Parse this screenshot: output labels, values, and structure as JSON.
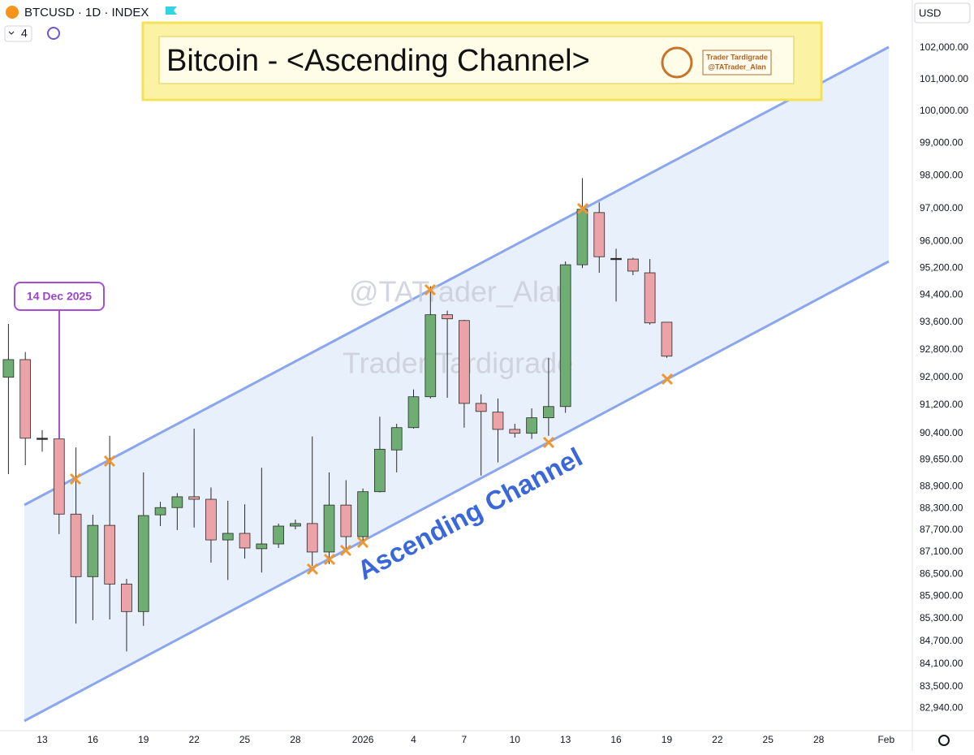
{
  "toolbar": {
    "symbol": "BTCUSD · 1D · INDEX",
    "count": 4,
    "currency": "USD"
  },
  "banner": {
    "title": "Bitcoin - <Ascending Channel>",
    "brand": "Trader Tardigrade",
    "handle": "@TATrader_Alan"
  },
  "watermarks": [
    "@TATrader_Alan",
    "Trader Tardigrade"
  ],
  "chart_data": {
    "type": "candlestick",
    "categories": [
      null,
      null,
      "13",
      null,
      null,
      "16",
      null,
      null,
      "19",
      null,
      null,
      "22",
      null,
      null,
      "25",
      null,
      null,
      "28",
      null,
      null,
      null,
      "2026",
      null,
      null,
      "4",
      null,
      null,
      "7",
      null,
      null,
      "10",
      null,
      null,
      "13",
      null,
      null,
      "16",
      null,
      null,
      "19",
      null,
      null,
      "22",
      null,
      null,
      "25",
      null,
      null,
      "28",
      null,
      null,
      null,
      "Feb",
      null
    ],
    "open": [
      92000,
      92510,
      90260,
      90240,
      88140,
      86430,
      87830,
      86230,
      85490,
      88120,
      88320,
      88620,
      88550,
      87430,
      87610,
      87190,
      87320,
      87810,
      87880,
      87100,
      88390,
      87520,
      88760,
      89930,
      90560,
      91440,
      93820,
      93650,
      91250,
      91000,
      90510,
      90400,
      90840,
      91160,
      95300,
      96870,
      95490,
      95470,
      95060,
      93600,
      null,
      null,
      null,
      null,
      null,
      null,
      null,
      null,
      null,
      null,
      null,
      null,
      null,
      null
    ],
    "high": [
      93550,
      92730,
      90490,
      90240,
      90000,
      88120,
      90330,
      86370,
      89300,
      88480,
      88720,
      90530,
      88880,
      88510,
      88410,
      89430,
      87880,
      87990,
      90310,
      89300,
      89080,
      88850,
      90870,
      90670,
      91650,
      94660,
      93940,
      93670,
      91510,
      91390,
      90670,
      91110,
      92560,
      95400,
      97920,
      97180,
      95780,
      95510,
      95470,
      93600,
      null,
      null,
      null,
      null,
      null,
      null,
      null,
      null,
      null,
      null,
      null,
      null,
      null,
      null
    ],
    "low": [
      89250,
      89500,
      89880,
      87590,
      85170,
      85260,
      85280,
      84430,
      85110,
      87810,
      87700,
      87770,
      86810,
      86340,
      86920,
      86540,
      87210,
      87720,
      86720,
      86770,
      87100,
      87320,
      88740,
      89300,
      90530,
      91390,
      91410,
      90560,
      89210,
      89580,
      90280,
      90240,
      90330,
      90980,
      95200,
      95060,
      94210,
      94990,
      93530,
      92560,
      null,
      null,
      null,
      null,
      null,
      null,
      null,
      null,
      null,
      null,
      null,
      null,
      null,
      null
    ],
    "close": [
      92510,
      90260,
      90260,
      88140,
      86430,
      87830,
      86230,
      85490,
      88100,
      88320,
      88620,
      88550,
      87430,
      87610,
      87210,
      87320,
      87810,
      87880,
      87100,
      88390,
      87520,
      88760,
      89950,
      90560,
      91440,
      93820,
      93700,
      91250,
      91020,
      90510,
      90400,
      90840,
      91160,
      95300,
      96970,
      95540,
      95490,
      95110,
      93580,
      92610,
      null,
      null,
      null,
      null,
      null,
      null,
      null,
      null,
      null,
      null,
      null,
      null,
      null,
      null
    ],
    "up_color": "#6fae72",
    "down_color": "#eba3a8",
    "wick_color": "#2a2a2a",
    "yscale": "log",
    "ylim": [
      82360,
      103540
    ],
    "grid": false,
    "yticks": [
      {
        "value": 102000,
        "label": "102,000.00"
      },
      {
        "value": 101000,
        "label": "101,000.00"
      },
      {
        "value": 100000,
        "label": "100,000.00"
      },
      {
        "value": 99000,
        "label": "99,000.00"
      },
      {
        "value": 98000,
        "label": "98,000.00"
      },
      {
        "value": 97000,
        "label": "97,000.00"
      },
      {
        "value": 96000,
        "label": "96,000.00"
      },
      {
        "value": 95200,
        "label": "95,200.00"
      },
      {
        "value": 94400,
        "label": "94,400.00"
      },
      {
        "value": 93600,
        "label": "93,600.00"
      },
      {
        "value": 92800,
        "label": "92,800.00"
      },
      {
        "value": 92000,
        "label": "92,000.00"
      },
      {
        "value": 91200,
        "label": "91,200.00"
      },
      {
        "value": 90400,
        "label": "90,400.00"
      },
      {
        "value": 89650,
        "label": "89,650.00"
      },
      {
        "value": 88900,
        "label": "88,900.00"
      },
      {
        "value": 88300,
        "label": "88,300.00"
      },
      {
        "value": 87700,
        "label": "87,700.00"
      },
      {
        "value": 87100,
        "label": "87,100.00"
      },
      {
        "value": 86500,
        "label": "86,500.00"
      },
      {
        "value": 85900,
        "label": "85,900.00"
      },
      {
        "value": 85300,
        "label": "85,300.00"
      },
      {
        "value": 84700,
        "label": "84,700.00"
      },
      {
        "value": 84100,
        "label": "84,100.00"
      },
      {
        "value": 83500,
        "label": "83,500.00"
      },
      {
        "value": 82940,
        "label": "82,940.00"
      }
    ],
    "annotations": [
      "14 Dec 2025",
      "Ascending Channel"
    ]
  }
}
